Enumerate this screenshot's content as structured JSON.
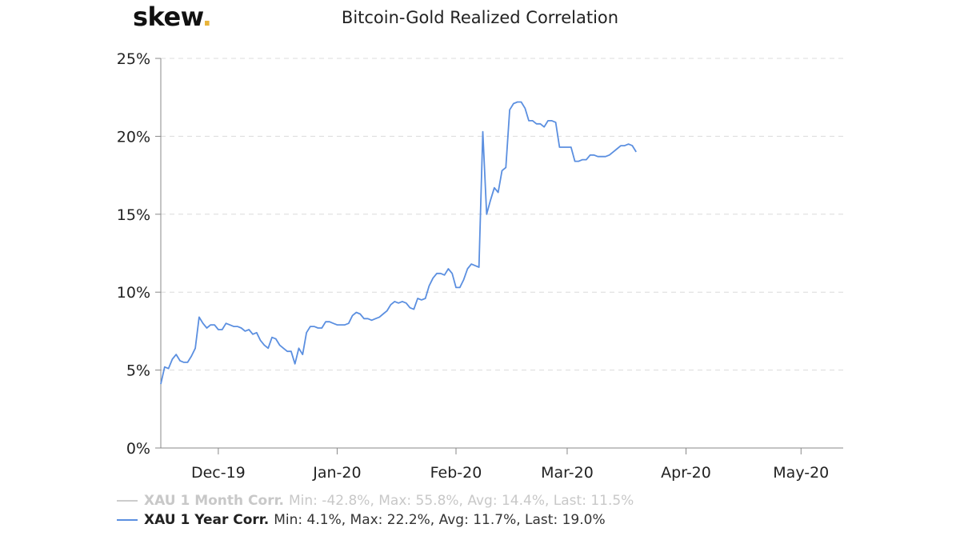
{
  "brand": {
    "name": "skew",
    "dot": "."
  },
  "chart_data": {
    "type": "line",
    "title": "Bitcoin-Gold Realized Correlation",
    "xlabel": "",
    "ylabel": "",
    "ylim": [
      0,
      25
    ],
    "yticks": [
      "0%",
      "5%",
      "10%",
      "15%",
      "20%",
      "25%"
    ],
    "ytick_values": [
      0,
      5,
      10,
      15,
      20,
      25
    ],
    "xlim": [
      "2019-11-16",
      "2020-05-12"
    ],
    "xticks": [
      {
        "label": "Dec-19",
        "date": "2019-12-01"
      },
      {
        "label": "Jan-20",
        "date": "2020-01-01"
      },
      {
        "label": "Feb-20",
        "date": "2020-02-01"
      },
      {
        "label": "Mar-20",
        "date": "2020-03-01"
      },
      {
        "label": "Apr-20",
        "date": "2020-04-01"
      },
      {
        "label": "May-20",
        "date": "2020-05-01"
      }
    ],
    "grid": true,
    "legend_position": "bottom-left",
    "series": [
      {
        "name": "XAU 1 Month Corr.",
        "stats": "Min: -42.8%, Max: 55.8%, Avg: 14.4%, Last: 11.5%",
        "visible": false,
        "color": "#cccccc",
        "points": []
      },
      {
        "name": "XAU 1 Year Corr.",
        "stats": "Min: 4.1%, Max: 22.2%, Avg: 11.7%, Last: 19.0%",
        "visible": true,
        "color": "#5b8fe0",
        "points": [
          [
            "2019-11-16",
            4.1
          ],
          [
            "2019-11-17",
            5.2
          ],
          [
            "2019-11-18",
            5.1
          ],
          [
            "2019-11-19",
            5.7
          ],
          [
            "2019-11-20",
            6.0
          ],
          [
            "2019-11-21",
            5.6
          ],
          [
            "2019-11-22",
            5.5
          ],
          [
            "2019-11-23",
            5.5
          ],
          [
            "2019-11-24",
            5.9
          ],
          [
            "2019-11-25",
            6.4
          ],
          [
            "2019-11-26",
            8.4
          ],
          [
            "2019-11-27",
            8.0
          ],
          [
            "2019-11-28",
            7.7
          ],
          [
            "2019-11-29",
            7.9
          ],
          [
            "2019-11-30",
            7.9
          ],
          [
            "2019-12-01",
            7.6
          ],
          [
            "2019-12-02",
            7.6
          ],
          [
            "2019-12-03",
            8.0
          ],
          [
            "2019-12-04",
            7.9
          ],
          [
            "2019-12-05",
            7.8
          ],
          [
            "2019-12-06",
            7.8
          ],
          [
            "2019-12-07",
            7.7
          ],
          [
            "2019-12-08",
            7.5
          ],
          [
            "2019-12-09",
            7.6
          ],
          [
            "2019-12-10",
            7.3
          ],
          [
            "2019-12-11",
            7.4
          ],
          [
            "2019-12-12",
            6.9
          ],
          [
            "2019-12-13",
            6.6
          ],
          [
            "2019-12-14",
            6.4
          ],
          [
            "2019-12-15",
            7.1
          ],
          [
            "2019-12-16",
            7.0
          ],
          [
            "2019-12-17",
            6.6
          ],
          [
            "2019-12-18",
            6.4
          ],
          [
            "2019-12-19",
            6.2
          ],
          [
            "2019-12-20",
            6.2
          ],
          [
            "2019-12-21",
            5.4
          ],
          [
            "2019-12-22",
            6.4
          ],
          [
            "2019-12-23",
            6.0
          ],
          [
            "2019-12-24",
            7.4
          ],
          [
            "2019-12-25",
            7.8
          ],
          [
            "2019-12-26",
            7.8
          ],
          [
            "2019-12-27",
            7.7
          ],
          [
            "2019-12-28",
            7.7
          ],
          [
            "2019-12-29",
            8.1
          ],
          [
            "2019-12-30",
            8.1
          ],
          [
            "2019-12-31",
            8.0
          ],
          [
            "2020-01-01",
            7.9
          ],
          [
            "2020-01-02",
            7.9
          ],
          [
            "2020-01-03",
            7.9
          ],
          [
            "2020-01-04",
            8.0
          ],
          [
            "2020-01-05",
            8.5
          ],
          [
            "2020-01-06",
            8.7
          ],
          [
            "2020-01-07",
            8.6
          ],
          [
            "2020-01-08",
            8.3
          ],
          [
            "2020-01-09",
            8.3
          ],
          [
            "2020-01-10",
            8.2
          ],
          [
            "2020-01-11",
            8.3
          ],
          [
            "2020-01-12",
            8.4
          ],
          [
            "2020-01-13",
            8.6
          ],
          [
            "2020-01-14",
            8.8
          ],
          [
            "2020-01-15",
            9.2
          ],
          [
            "2020-01-16",
            9.4
          ],
          [
            "2020-01-17",
            9.3
          ],
          [
            "2020-01-18",
            9.4
          ],
          [
            "2020-01-19",
            9.3
          ],
          [
            "2020-01-20",
            9.0
          ],
          [
            "2020-01-21",
            8.9
          ],
          [
            "2020-01-22",
            9.6
          ],
          [
            "2020-01-23",
            9.5
          ],
          [
            "2020-01-24",
            9.6
          ],
          [
            "2020-01-25",
            10.4
          ],
          [
            "2020-01-26",
            10.9
          ],
          [
            "2020-01-27",
            11.2
          ],
          [
            "2020-01-28",
            11.2
          ],
          [
            "2020-01-29",
            11.1
          ],
          [
            "2020-01-30",
            11.5
          ],
          [
            "2020-01-31",
            11.2
          ],
          [
            "2020-02-01",
            10.3
          ],
          [
            "2020-02-02",
            10.3
          ],
          [
            "2020-02-03",
            10.8
          ],
          [
            "2020-02-04",
            11.5
          ],
          [
            "2020-02-05",
            11.8
          ],
          [
            "2020-02-06",
            11.7
          ],
          [
            "2020-02-07",
            11.6
          ],
          [
            "2020-02-08",
            20.3
          ],
          [
            "2020-02-09",
            15.0
          ],
          [
            "2020-02-10",
            15.9
          ],
          [
            "2020-02-11",
            16.7
          ],
          [
            "2020-02-12",
            16.4
          ],
          [
            "2020-02-13",
            17.8
          ],
          [
            "2020-02-14",
            18.0
          ],
          [
            "2020-02-15",
            21.7
          ],
          [
            "2020-02-16",
            22.1
          ],
          [
            "2020-02-17",
            22.2
          ],
          [
            "2020-02-18",
            22.2
          ],
          [
            "2020-02-19",
            21.8
          ],
          [
            "2020-02-20",
            21.0
          ],
          [
            "2020-02-21",
            21.0
          ],
          [
            "2020-02-22",
            20.8
          ],
          [
            "2020-02-23",
            20.8
          ],
          [
            "2020-02-24",
            20.6
          ],
          [
            "2020-02-25",
            21.0
          ],
          [
            "2020-02-26",
            21.0
          ],
          [
            "2020-02-27",
            20.9
          ],
          [
            "2020-02-28",
            19.3
          ],
          [
            "2020-03-01",
            19.3
          ],
          [
            "2020-03-02",
            19.3
          ],
          [
            "2020-03-03",
            18.4
          ],
          [
            "2020-03-04",
            18.4
          ],
          [
            "2020-03-05",
            18.5
          ],
          [
            "2020-03-06",
            18.5
          ],
          [
            "2020-03-07",
            18.8
          ],
          [
            "2020-03-08",
            18.8
          ],
          [
            "2020-03-09",
            18.7
          ],
          [
            "2020-03-10",
            18.7
          ],
          [
            "2020-03-11",
            18.7
          ],
          [
            "2020-03-12",
            18.8
          ],
          [
            "2020-03-13",
            19.0
          ],
          [
            "2020-03-14",
            19.2
          ],
          [
            "2020-03-15",
            19.4
          ],
          [
            "2020-03-16",
            19.4
          ],
          [
            "2020-03-17",
            19.5
          ],
          [
            "2020-03-18",
            19.4
          ],
          [
            "2020-03-19",
            19.0
          ]
        ]
      }
    ]
  }
}
